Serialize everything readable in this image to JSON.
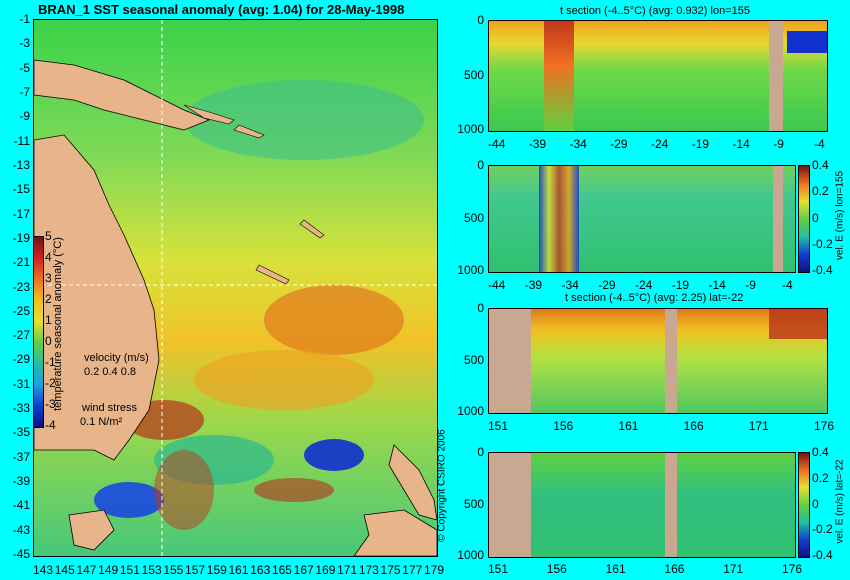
{
  "main_map": {
    "title": "BRAN_1 SST seasonal anomaly (avg: 1.04) for 28-May-1998",
    "y_ticks": [
      "-1",
      "-3",
      "-5",
      "-7",
      "-9",
      "-11",
      "-13",
      "-15",
      "-17",
      "-19",
      "-21",
      "-23",
      "-25",
      "-27",
      "-29",
      "-31",
      "-33",
      "-35",
      "-37",
      "-39",
      "-41",
      "-43",
      "-45"
    ],
    "x_ticks": [
      "143",
      "145",
      "147",
      "149",
      "151",
      "153",
      "155",
      "157",
      "159",
      "161",
      "163",
      "165",
      "167",
      "169",
      "171",
      "173",
      "175",
      "177",
      "179"
    ],
    "colorbar": {
      "ticks": [
        "5",
        "4",
        "3",
        "2",
        "1",
        "0",
        "-1",
        "-2",
        "-3",
        "-4"
      ],
      "label": "temperature seasonal anomaly (°C)"
    },
    "velocity_legend": {
      "label": "velocity (m/s)",
      "scale": "0.2 0.4 0.8"
    },
    "wind_legend": {
      "label": "wind stress",
      "scale": "0.1 N/m²"
    },
    "copyright": "© Copyright CSIRO 2006"
  },
  "panels": [
    {
      "title": "t section (-4..5°C) (avg: 0.932) lon=155",
      "y_ticks": [
        "0",
        "500",
        "1000"
      ],
      "x_ticks": [
        "-44",
        "-39",
        "-34",
        "-29",
        "-24",
        "-19",
        "-14",
        "-9",
        "-4"
      ]
    },
    {
      "title": "",
      "y_ticks": [
        "0",
        "500",
        "1000"
      ],
      "x_ticks": [
        "-44",
        "-39",
        "-34",
        "-29",
        "-24",
        "-19",
        "-14",
        "-9",
        "-4"
      ],
      "colorbar_ticks": [
        "0.4",
        "0.2",
        "0",
        "-0.2",
        "-0.4"
      ],
      "colorbar_label": "vel. E (m/s) lon=155"
    },
    {
      "title": "t section (-4..5°C) (avg: 2.25) lat=-22",
      "y_ticks": [
        "0",
        "500",
        "1000"
      ],
      "x_ticks": [
        "151",
        "156",
        "161",
        "166",
        "171",
        "176"
      ]
    },
    {
      "title": "",
      "y_ticks": [
        "0",
        "500",
        "1000"
      ],
      "x_ticks": [
        "151",
        "156",
        "161",
        "166",
        "171",
        "176"
      ],
      "colorbar_ticks": [
        "0.4",
        "0.2",
        "0",
        "-0.2",
        "-0.4"
      ],
      "colorbar_label": "vel. E (m/s) lat=-22"
    }
  ],
  "colors": {
    "background": "#00ffff",
    "land": "#e8b48a",
    "ocean_green": "#2ecc3a",
    "anomaly_red": "#c0391e",
    "anomaly_blue": "#1030d0"
  }
}
